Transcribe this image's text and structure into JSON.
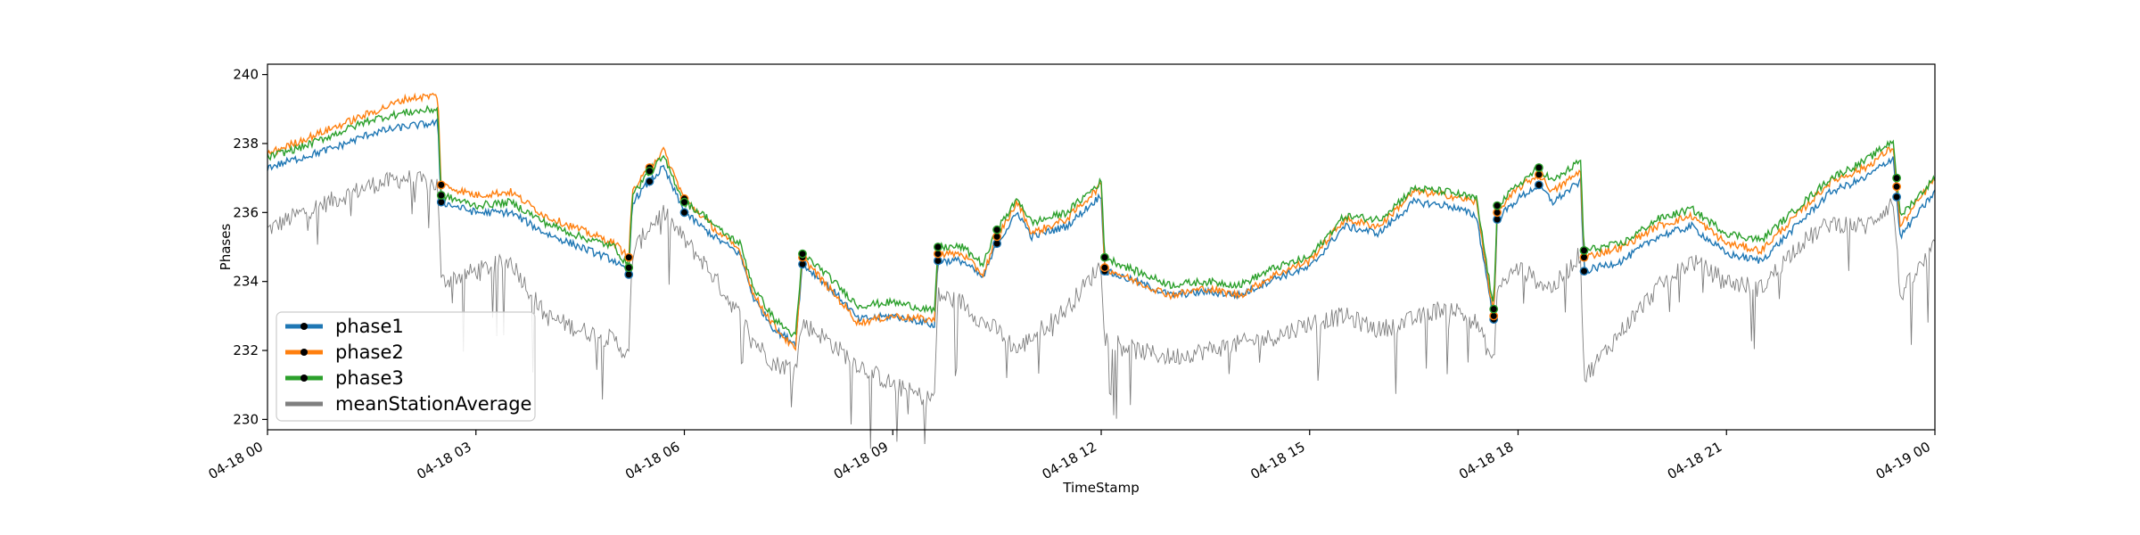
{
  "chart_data": {
    "type": "line",
    "xlabel": "TimeStamp",
    "ylabel": "Phases",
    "x_start": "04-18 00:00",
    "x_end": "04-19 00:00",
    "xlim_hours": [
      0,
      24
    ],
    "ylim": [
      229.7,
      240.3
    ],
    "yticks": [
      {
        "value": 230,
        "label": "230"
      },
      {
        "value": 232,
        "label": "232"
      },
      {
        "value": 234,
        "label": "234"
      },
      {
        "value": 236,
        "label": "236"
      },
      {
        "value": 238,
        "label": "238"
      },
      {
        "value": 240,
        "label": "240"
      }
    ],
    "xticks": [
      {
        "hour": 0,
        "label": "04-18 00"
      },
      {
        "hour": 3,
        "label": "04-18 03"
      },
      {
        "hour": 6,
        "label": "04-18 06"
      },
      {
        "hour": 9,
        "label": "04-18 09"
      },
      {
        "hour": 12,
        "label": "04-18 12"
      },
      {
        "hour": 15,
        "label": "04-18 15"
      },
      {
        "hour": 18,
        "label": "04-18 18"
      },
      {
        "hour": 21,
        "label": "04-18 21"
      },
      {
        "hour": 24,
        "label": "04-19 00"
      }
    ],
    "grid": false,
    "legend_position": "lower-left",
    "series": [
      {
        "name": "phase1",
        "color": "#1f77b4",
        "points": [
          [
            0,
            237.3
          ],
          [
            0.5,
            237.6
          ],
          [
            1,
            237.9
          ],
          [
            1.5,
            238.3
          ],
          [
            2,
            238.5
          ],
          [
            2.45,
            238.6
          ],
          [
            2.5,
            236.3
          ],
          [
            3,
            236.0
          ],
          [
            3.5,
            236.0
          ],
          [
            4,
            235.4
          ],
          [
            4.5,
            235.0
          ],
          [
            5,
            234.6
          ],
          [
            5.2,
            234.2
          ],
          [
            5.25,
            236.3
          ],
          [
            5.5,
            236.9
          ],
          [
            5.7,
            237.3
          ],
          [
            6,
            236.0
          ],
          [
            6.3,
            235.5
          ],
          [
            6.5,
            235.2
          ],
          [
            6.8,
            234.8
          ],
          [
            7,
            233.5
          ],
          [
            7.3,
            232.6
          ],
          [
            7.6,
            232.2
          ],
          [
            7.7,
            234.5
          ],
          [
            8,
            234.0
          ],
          [
            8.3,
            233.4
          ],
          [
            8.5,
            232.9
          ],
          [
            9,
            233.0
          ],
          [
            9.5,
            232.8
          ],
          [
            9.6,
            232.7
          ],
          [
            9.65,
            234.6
          ],
          [
            10,
            234.6
          ],
          [
            10.3,
            234.1
          ],
          [
            10.5,
            235.1
          ],
          [
            10.8,
            236.0
          ],
          [
            11,
            235.3
          ],
          [
            11.5,
            235.6
          ],
          [
            12,
            236.5
          ],
          [
            12.05,
            234.3
          ],
          [
            12.5,
            234.0
          ],
          [
            13,
            233.6
          ],
          [
            13.5,
            233.7
          ],
          [
            14,
            233.6
          ],
          [
            14.5,
            234.1
          ],
          [
            15,
            234.4
          ],
          [
            15.5,
            235.6
          ],
          [
            16,
            235.4
          ],
          [
            16.5,
            236.3
          ],
          [
            17,
            236.2
          ],
          [
            17.4,
            235.9
          ],
          [
            17.65,
            232.9
          ],
          [
            17.7,
            235.8
          ],
          [
            18,
            236.4
          ],
          [
            18.3,
            236.8
          ],
          [
            18.5,
            236.3
          ],
          [
            18.9,
            236.9
          ],
          [
            18.95,
            234.3
          ],
          [
            19.5,
            234.6
          ],
          [
            20,
            235.3
          ],
          [
            20.5,
            235.6
          ],
          [
            21,
            234.8
          ],
          [
            21.5,
            234.6
          ],
          [
            22,
            235.6
          ],
          [
            22.5,
            236.6
          ],
          [
            23,
            237.0
          ],
          [
            23.4,
            237.6
          ],
          [
            23.5,
            235.3
          ],
          [
            24,
            236.6
          ]
        ]
      },
      {
        "name": "phase2",
        "color": "#ff7f0e",
        "points": [
          [
            0,
            237.7
          ],
          [
            0.5,
            238.1
          ],
          [
            1,
            238.5
          ],
          [
            1.5,
            238.9
          ],
          [
            2,
            239.3
          ],
          [
            2.45,
            239.4
          ],
          [
            2.5,
            236.8
          ],
          [
            3,
            236.5
          ],
          [
            3.5,
            236.6
          ],
          [
            4,
            235.9
          ],
          [
            4.5,
            235.5
          ],
          [
            5,
            235.1
          ],
          [
            5.2,
            234.7
          ],
          [
            5.25,
            236.6
          ],
          [
            5.5,
            237.3
          ],
          [
            5.7,
            237.8
          ],
          [
            6,
            236.4
          ],
          [
            6.3,
            235.8
          ],
          [
            6.5,
            235.4
          ],
          [
            6.8,
            234.9
          ],
          [
            7,
            233.6
          ],
          [
            7.3,
            232.7
          ],
          [
            7.6,
            232.0
          ],
          [
            7.7,
            234.7
          ],
          [
            8,
            234.0
          ],
          [
            8.3,
            233.3
          ],
          [
            8.5,
            232.8
          ],
          [
            9,
            233.0
          ],
          [
            9.5,
            232.9
          ],
          [
            9.6,
            232.9
          ],
          [
            9.65,
            234.8
          ],
          [
            10,
            234.8
          ],
          [
            10.3,
            234.2
          ],
          [
            10.5,
            235.3
          ],
          [
            10.8,
            236.3
          ],
          [
            11,
            235.4
          ],
          [
            11.5,
            235.8
          ],
          [
            12,
            236.8
          ],
          [
            12.05,
            234.4
          ],
          [
            12.5,
            234.0
          ],
          [
            13,
            233.6
          ],
          [
            13.5,
            233.8
          ],
          [
            14,
            233.6
          ],
          [
            14.5,
            234.2
          ],
          [
            15,
            234.6
          ],
          [
            15.5,
            235.8
          ],
          [
            16,
            235.6
          ],
          [
            16.5,
            236.6
          ],
          [
            17,
            236.5
          ],
          [
            17.4,
            236.3
          ],
          [
            17.65,
            233.0
          ],
          [
            17.7,
            236.0
          ],
          [
            18,
            236.7
          ],
          [
            18.3,
            237.1
          ],
          [
            18.5,
            236.6
          ],
          [
            18.9,
            237.2
          ],
          [
            18.95,
            234.7
          ],
          [
            19.5,
            235.0
          ],
          [
            20,
            235.6
          ],
          [
            20.5,
            235.9
          ],
          [
            21,
            235.1
          ],
          [
            21.5,
            234.9
          ],
          [
            22,
            235.9
          ],
          [
            22.5,
            236.9
          ],
          [
            23,
            237.3
          ],
          [
            23.4,
            237.9
          ],
          [
            23.5,
            235.6
          ],
          [
            24,
            237.0
          ]
        ]
      },
      {
        "name": "phase3",
        "color": "#2ca02c",
        "points": [
          [
            0,
            237.6
          ],
          [
            0.5,
            237.9
          ],
          [
            1,
            238.3
          ],
          [
            1.5,
            238.7
          ],
          [
            2,
            238.9
          ],
          [
            2.45,
            239.0
          ],
          [
            2.5,
            236.5
          ],
          [
            3,
            236.2
          ],
          [
            3.5,
            236.3
          ],
          [
            4,
            235.7
          ],
          [
            4.5,
            235.3
          ],
          [
            5,
            235.0
          ],
          [
            5.2,
            234.4
          ],
          [
            5.25,
            236.5
          ],
          [
            5.5,
            237.2
          ],
          [
            5.7,
            237.6
          ],
          [
            6,
            236.3
          ],
          [
            6.3,
            235.9
          ],
          [
            6.5,
            235.5
          ],
          [
            6.8,
            235.1
          ],
          [
            7,
            233.8
          ],
          [
            7.3,
            232.9
          ],
          [
            7.6,
            232.4
          ],
          [
            7.7,
            234.8
          ],
          [
            8,
            234.3
          ],
          [
            8.3,
            233.7
          ],
          [
            8.5,
            233.3
          ],
          [
            9,
            233.4
          ],
          [
            9.5,
            233.2
          ],
          [
            9.6,
            233.1
          ],
          [
            9.65,
            235.0
          ],
          [
            10,
            235.0
          ],
          [
            10.3,
            234.5
          ],
          [
            10.5,
            235.5
          ],
          [
            10.8,
            236.4
          ],
          [
            11,
            235.7
          ],
          [
            11.5,
            236.0
          ],
          [
            12,
            236.9
          ],
          [
            12.05,
            234.7
          ],
          [
            12.5,
            234.3
          ],
          [
            13,
            233.9
          ],
          [
            13.5,
            234.0
          ],
          [
            14,
            233.9
          ],
          [
            14.5,
            234.4
          ],
          [
            15,
            234.7
          ],
          [
            15.5,
            235.9
          ],
          [
            16,
            235.8
          ],
          [
            16.5,
            236.7
          ],
          [
            17,
            236.6
          ],
          [
            17.4,
            236.4
          ],
          [
            17.65,
            233.2
          ],
          [
            17.7,
            236.2
          ],
          [
            18,
            236.8
          ],
          [
            18.3,
            237.3
          ],
          [
            18.5,
            236.9
          ],
          [
            18.9,
            237.5
          ],
          [
            18.95,
            234.9
          ],
          [
            19.5,
            235.1
          ],
          [
            20,
            235.8
          ],
          [
            20.5,
            236.1
          ],
          [
            21,
            235.4
          ],
          [
            21.5,
            235.2
          ],
          [
            22,
            236.1
          ],
          [
            22.5,
            237.0
          ],
          [
            23,
            237.5
          ],
          [
            23.4,
            238.1
          ],
          [
            23.5,
            235.9
          ],
          [
            24,
            237.0
          ]
        ]
      },
      {
        "name": "meanStationAverage",
        "color": "#7f7f7f",
        "points": [
          [
            0,
            235.5
          ],
          [
            0.5,
            236.0
          ],
          [
            1,
            236.4
          ],
          [
            1.5,
            236.8
          ],
          [
            2,
            237.0
          ],
          [
            2.45,
            236.8
          ],
          [
            2.5,
            234.0
          ],
          [
            3,
            234.3
          ],
          [
            3.5,
            234.6
          ],
          [
            4,
            233.0
          ],
          [
            4.5,
            232.6
          ],
          [
            5,
            232.3
          ],
          [
            5.2,
            231.8
          ],
          [
            5.25,
            234.8
          ],
          [
            5.5,
            235.6
          ],
          [
            5.7,
            236.0
          ],
          [
            6,
            235.2
          ],
          [
            6.3,
            234.5
          ],
          [
            6.5,
            233.9
          ],
          [
            6.8,
            233.0
          ],
          [
            7,
            232.3
          ],
          [
            7.3,
            231.6
          ],
          [
            7.6,
            231.5
          ],
          [
            7.7,
            232.8
          ],
          [
            8,
            232.4
          ],
          [
            8.3,
            231.9
          ],
          [
            8.5,
            231.6
          ],
          [
            9,
            231.0
          ],
          [
            9.5,
            230.6
          ],
          [
            9.6,
            230.7
          ],
          [
            9.65,
            233.6
          ],
          [
            10,
            233.4
          ],
          [
            10.3,
            232.8
          ],
          [
            10.5,
            232.6
          ],
          [
            10.8,
            232.0
          ],
          [
            11,
            232.4
          ],
          [
            11.5,
            233.2
          ],
          [
            12,
            234.5
          ],
          [
            12.05,
            232.4
          ],
          [
            12.5,
            232.0
          ],
          [
            13,
            231.8
          ],
          [
            13.5,
            232.0
          ],
          [
            14,
            232.2
          ],
          [
            14.5,
            232.4
          ],
          [
            15,
            232.8
          ],
          [
            15.5,
            233.0
          ],
          [
            16,
            232.6
          ],
          [
            16.5,
            232.9
          ],
          [
            17,
            233.3
          ],
          [
            17.4,
            232.8
          ],
          [
            17.65,
            231.6
          ],
          [
            17.7,
            233.8
          ],
          [
            18,
            234.4
          ],
          [
            18.3,
            234.0
          ],
          [
            18.5,
            233.8
          ],
          [
            18.9,
            234.8
          ],
          [
            18.95,
            231.2
          ],
          [
            19.5,
            232.6
          ],
          [
            20,
            233.8
          ],
          [
            20.5,
            234.6
          ],
          [
            21,
            234.0
          ],
          [
            21.5,
            233.8
          ],
          [
            22,
            235.0
          ],
          [
            22.5,
            235.7
          ],
          [
            23,
            235.6
          ],
          [
            23.4,
            236.3
          ],
          [
            23.5,
            233.6
          ],
          [
            24,
            235.0
          ]
        ]
      }
    ],
    "event_markers": {
      "color": "#000000",
      "hours": [
        2.5,
        5.2,
        5.5,
        6.0,
        7.7,
        9.65,
        10.5,
        12.05,
        17.65,
        17.7,
        18.3,
        18.95,
        23.45
      ]
    }
  }
}
